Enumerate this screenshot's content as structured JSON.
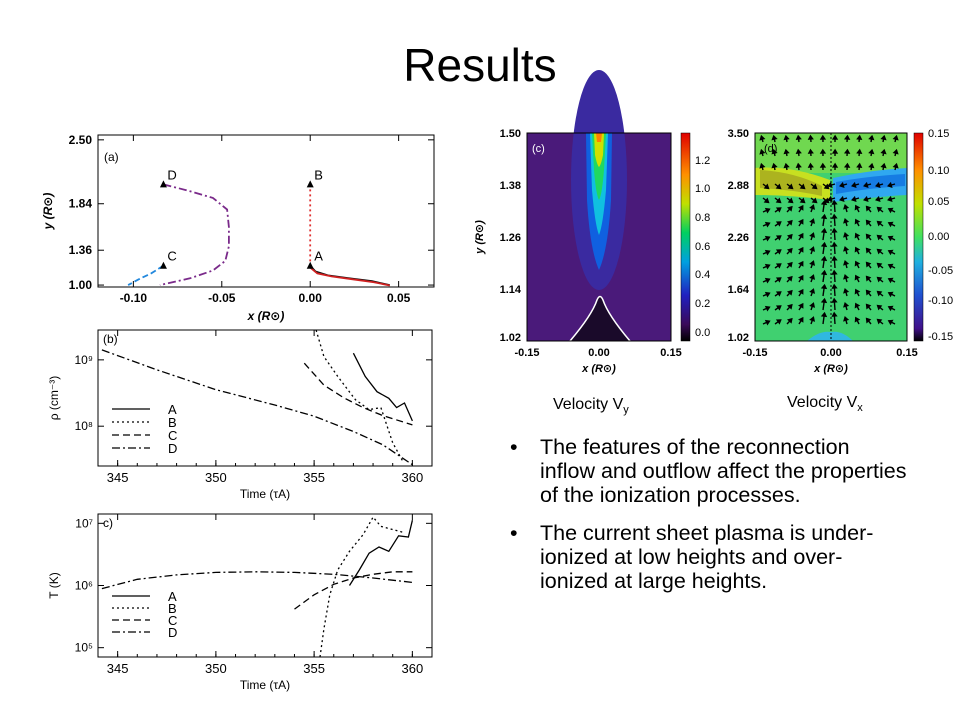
{
  "slide": {
    "title": "Results",
    "captions": {
      "vy": "Velocity V",
      "vy_sub": "y",
      "vx": "Velocity V",
      "vx_sub": "x"
    },
    "bullets": [
      "The features of the reconnection inflow and outflow affect the properties of the ionization processes.",
      "The current sheet plasma is under-ionized at low heights and over-ionized at large heights."
    ],
    "bullet_glyph": "•"
  },
  "chart_data": [
    {
      "id": "a",
      "type": "line",
      "panel_label": "(a)",
      "xlabel": "x (R⊙)",
      "ylabel": "y (R⊙)",
      "xlim": [
        -0.12,
        0.07
      ],
      "ylim": [
        0.98,
        2.55
      ],
      "xticks": [
        "-0.10",
        "-0.05",
        "0.00",
        "0.05"
      ],
      "yticks": [
        "1.00",
        "1.36",
        "1.84",
        "2.50"
      ],
      "markers": [
        {
          "label": "D",
          "x": -0.083,
          "y": 2.04
        },
        {
          "label": "B",
          "x": 0.0,
          "y": 2.04
        },
        {
          "label": "C",
          "x": -0.083,
          "y": 1.2
        },
        {
          "label": "A",
          "x": 0.0,
          "y": 1.2
        }
      ],
      "series": [
        {
          "id": "D",
          "color": "#7a2a8a",
          "dash": "8,3,2,3",
          "x": [
            -0.083,
            -0.07,
            -0.055,
            -0.047,
            -0.046,
            -0.046,
            -0.048,
            -0.055,
            -0.068,
            -0.085
          ],
          "y": [
            2.04,
            1.98,
            1.9,
            1.78,
            1.6,
            1.4,
            1.25,
            1.15,
            1.07,
            1.0
          ]
        },
        {
          "id": "B",
          "color": "#e03030",
          "dash": "2,3",
          "x": [
            0.0,
            0.0,
            0.0
          ],
          "y": [
            2.04,
            1.6,
            1.2
          ]
        },
        {
          "id": "C",
          "color": "#2288dd",
          "dash": "6,3",
          "x": [
            -0.083,
            -0.09,
            -0.097,
            -0.103
          ],
          "y": [
            1.2,
            1.12,
            1.06,
            1.0
          ]
        },
        {
          "id": "A",
          "color": "#111111",
          "dash": "",
          "x": [
            0.0,
            0.003,
            0.01,
            0.022,
            0.035,
            0.045
          ],
          "y": [
            1.2,
            1.14,
            1.1,
            1.07,
            1.04,
            1.0
          ]
        },
        {
          "id": "A-red",
          "color": "#d02020",
          "dash": "",
          "x": [
            0.0,
            0.004,
            0.012,
            0.024,
            0.036,
            0.045
          ],
          "y": [
            1.18,
            1.12,
            1.09,
            1.06,
            1.03,
            0.995
          ]
        }
      ]
    },
    {
      "id": "b",
      "type": "line",
      "panel_label": "(b)",
      "xlabel": "Time (τA)",
      "ylabel": "ρ (cm⁻³)",
      "xlim": [
        344,
        361
      ],
      "ylim_log10": [
        7.4,
        9.45
      ],
      "xticks": [
        "345",
        "350",
        "355",
        "360"
      ],
      "yticks": [
        "10⁸",
        "10⁹"
      ],
      "legend": [
        "A",
        "B",
        "C",
        "D"
      ],
      "series": [
        {
          "id": "A",
          "dash": "",
          "x": [
            357.0,
            357.6,
            358.2,
            358.8,
            359.2,
            359.6,
            360.0
          ],
          "logy": [
            9.1,
            8.75,
            8.52,
            8.42,
            8.28,
            8.35,
            8.08
          ]
        },
        {
          "id": "B",
          "dash": "2,3",
          "x": [
            355.1,
            355.5,
            356.2,
            357.1,
            357.8,
            358.4,
            359.0,
            359.5
          ],
          "logy": [
            9.45,
            9.05,
            8.75,
            8.4,
            8.25,
            8.28,
            7.75,
            7.48
          ]
        },
        {
          "id": "C",
          "dash": "7,4",
          "x": [
            354.5,
            355.5,
            356.5,
            357.5,
            358.5,
            360.0
          ],
          "logy": [
            8.95,
            8.62,
            8.43,
            8.28,
            8.16,
            8.02
          ]
        },
        {
          "id": "D",
          "dash": "8,3,2,3",
          "x": [
            344.2,
            347,
            350,
            353,
            355,
            357,
            358.5,
            360.0
          ],
          "logy": [
            9.15,
            8.85,
            8.55,
            8.32,
            8.15,
            7.92,
            7.72,
            7.42
          ]
        }
      ]
    },
    {
      "id": "c",
      "type": "line",
      "panel_label": "c)",
      "xlabel": "Time (τA)",
      "ylabel": "T (K)",
      "xlim": [
        344,
        361
      ],
      "ylim_log10": [
        4.85,
        7.15
      ],
      "xticks": [
        "345",
        "350",
        "355",
        "360"
      ],
      "yticks": [
        "10⁵",
        "10⁶",
        "10⁷"
      ],
      "legend": [
        "A",
        "B",
        "C",
        "D"
      ],
      "series": [
        {
          "id": "A",
          "dash": "",
          "x": [
            356.8,
            357.3,
            357.8,
            358.3,
            358.8,
            359.3,
            359.8,
            360.0
          ],
          "logy": [
            6.0,
            6.25,
            6.52,
            6.62,
            6.55,
            6.8,
            6.78,
            7.05
          ]
        },
        {
          "id": "B",
          "dash": "2,3",
          "x": [
            355.3,
            355.5,
            355.8,
            356.2,
            356.8,
            357.5,
            358.0,
            358.4,
            359.0,
            359.6
          ],
          "logy": [
            4.85,
            5.3,
            5.85,
            6.25,
            6.55,
            6.82,
            7.1,
            6.95,
            6.9,
            6.85
          ]
        },
        {
          "id": "C",
          "dash": "7,4",
          "x": [
            354.0,
            355.0,
            356.0,
            357.0,
            358.0,
            359.0,
            360.0
          ],
          "logy": [
            5.62,
            5.85,
            6.02,
            6.12,
            6.18,
            6.22,
            6.22
          ]
        },
        {
          "id": "D",
          "dash": "8,3,2,3",
          "x": [
            344.2,
            346,
            348,
            350,
            352,
            354,
            356,
            358,
            360
          ],
          "logy": [
            5.95,
            6.1,
            6.17,
            6.21,
            6.22,
            6.21,
            6.18,
            6.12,
            6.05
          ]
        }
      ]
    },
    {
      "id": "panel-c",
      "type": "heatmap",
      "panel_label": "(c)",
      "xlabel": "x (R⊙)",
      "ylabel": "y (R⊙)",
      "xticks": [
        "-0.15",
        "0.00",
        "0.15"
      ],
      "yticks": [
        "1.02",
        "1.14",
        "1.26",
        "1.38",
        "1.50"
      ],
      "colorbar_ticks": [
        "0.0",
        "0.2",
        "0.4",
        "0.6",
        "0.8",
        "1.0",
        "1.2"
      ]
    },
    {
      "id": "panel-d",
      "type": "heatmap",
      "panel_label": "(d)",
      "xlabel": "x (R⊙)",
      "ylabel": "y (R⊙)",
      "xticks": [
        "-0.15",
        "0.00",
        "0.15"
      ],
      "yticks": [
        "1.02",
        "1.64",
        "2.26",
        "2.88",
        "3.50"
      ],
      "colorbar_ticks": [
        "0.15",
        "0.10",
        "0.05",
        "0.00",
        "-0.05",
        "-0.10",
        "-0.15"
      ]
    }
  ]
}
